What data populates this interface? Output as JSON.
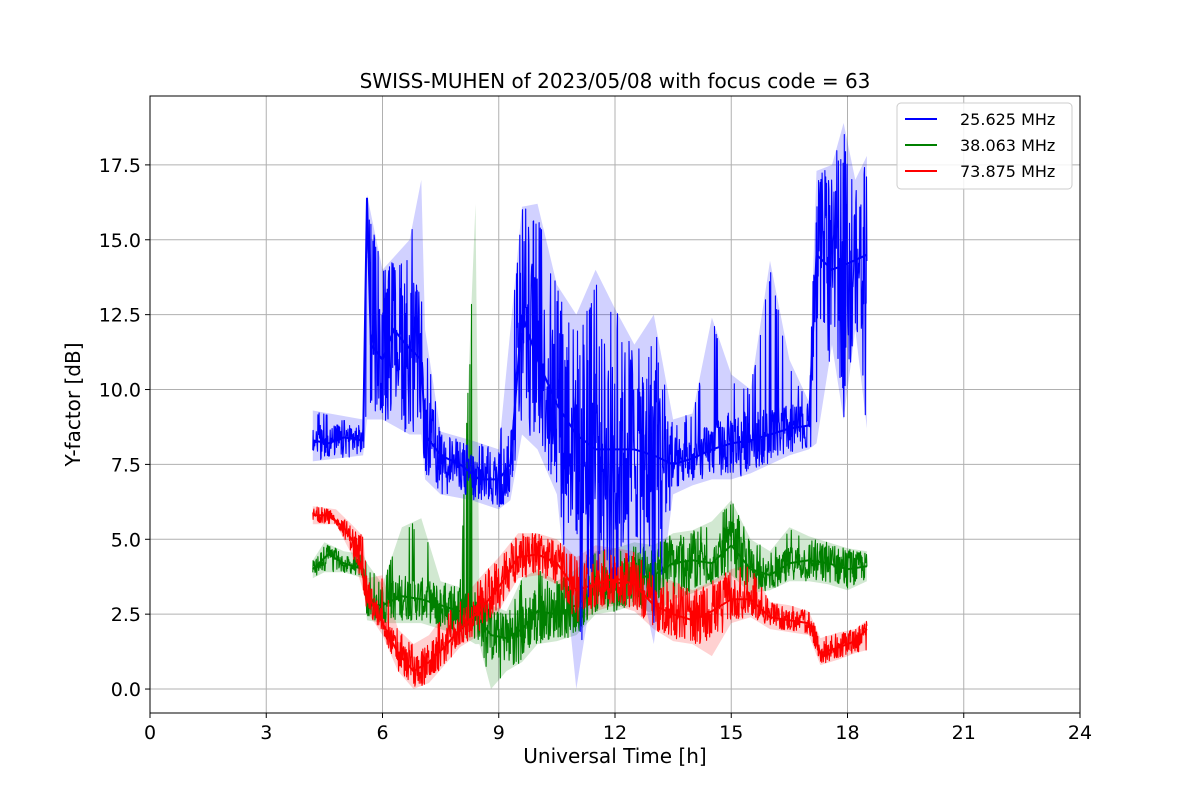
{
  "chart_data": {
    "type": "line",
    "title": "SWISS-MUHEN of 2023/05/08 with focus code = 63",
    "xlabel": "Universal Time [h]",
    "ylabel": "Y-factor [dB]",
    "xlim": [
      0,
      24
    ],
    "ylim": [
      -0.8,
      19.8
    ],
    "xticks": [
      0,
      3,
      6,
      9,
      12,
      15,
      18,
      21,
      24
    ],
    "yticks": [
      0.0,
      2.5,
      5.0,
      7.5,
      10.0,
      12.5,
      15.0,
      17.5
    ],
    "xtick_labels": [
      "0",
      "3",
      "6",
      "9",
      "12",
      "15",
      "18",
      "21",
      "24"
    ],
    "ytick_labels": [
      "0.0",
      "2.5",
      "5.0",
      "7.5",
      "10.0",
      "12.5",
      "15.0",
      "17.5"
    ],
    "grid": true,
    "legend_position": "top-right",
    "series": [
      {
        "name": "25.625 MHz",
        "color": "#0000ff",
        "points": [
          [
            4.2,
            8.3
          ],
          [
            4.6,
            8.2
          ],
          [
            5.0,
            8.4
          ],
          [
            5.5,
            8.3
          ],
          [
            5.6,
            16.4
          ],
          [
            5.7,
            11.5
          ],
          [
            6.0,
            11.0
          ],
          [
            6.3,
            12.0
          ],
          [
            6.6,
            11.5
          ],
          [
            7.0,
            11.0
          ],
          [
            7.1,
            8.5
          ],
          [
            7.5,
            7.8
          ],
          [
            8.0,
            7.5
          ],
          [
            8.5,
            7.0
          ],
          [
            9.0,
            7.0
          ],
          [
            9.3,
            7.5
          ],
          [
            9.6,
            12.5
          ],
          [
            10.0,
            11.0
          ],
          [
            10.5,
            9.5
          ],
          [
            11.0,
            8.5
          ],
          [
            11.5,
            8.0
          ],
          [
            12.0,
            8.0
          ],
          [
            12.5,
            8.0
          ],
          [
            13.0,
            7.8
          ],
          [
            13.5,
            7.5
          ],
          [
            14.0,
            7.7
          ],
          [
            14.5,
            8.0
          ],
          [
            15.0,
            8.2
          ],
          [
            15.5,
            8.3
          ],
          [
            16.0,
            8.5
          ],
          [
            16.5,
            8.7
          ],
          [
            17.0,
            8.8
          ],
          [
            17.2,
            14.5
          ],
          [
            17.6,
            14.0
          ],
          [
            18.0,
            14.2
          ],
          [
            18.5,
            14.5
          ]
        ],
        "band": [
          [
            4.2,
            7.6,
            9.3
          ],
          [
            5.5,
            7.8,
            9.0
          ],
          [
            5.6,
            9.0,
            16.5
          ],
          [
            6.0,
            9.0,
            14.0
          ],
          [
            6.7,
            8.5,
            15.0
          ],
          [
            7.0,
            8.5,
            17.0
          ],
          [
            7.1,
            7.0,
            12.0
          ],
          [
            7.5,
            6.5,
            8.6
          ],
          [
            8.3,
            6.3,
            8.3
          ],
          [
            9.0,
            6.0,
            8.0
          ],
          [
            9.3,
            6.3,
            12.0
          ],
          [
            9.6,
            8.5,
            16.1
          ],
          [
            10.0,
            8.0,
            16.2
          ],
          [
            10.5,
            6.5,
            13.5
          ],
          [
            11.0,
            0.0,
            12.5
          ],
          [
            11.5,
            4.0,
            14.0
          ],
          [
            12.0,
            3.5,
            12.7
          ],
          [
            12.5,
            4.5,
            11.5
          ],
          [
            13.0,
            1.5,
            12.5
          ],
          [
            13.5,
            6.5,
            9.0
          ],
          [
            14.0,
            6.8,
            9.2
          ],
          [
            14.5,
            7.0,
            12.4
          ],
          [
            15.0,
            7.0,
            10.5
          ],
          [
            15.5,
            7.2,
            10.0
          ],
          [
            16.0,
            7.5,
            14.3
          ],
          [
            16.5,
            7.8,
            11.0
          ],
          [
            17.0,
            8.0,
            9.6
          ],
          [
            17.2,
            8.2,
            17.3
          ],
          [
            17.6,
            11.5,
            17.5
          ],
          [
            17.9,
            9.0,
            18.9
          ],
          [
            18.2,
            12.0,
            17.0
          ],
          [
            18.5,
            8.7,
            17.8
          ]
        ]
      },
      {
        "name": "38.063 MHz",
        "color": "#008000",
        "points": [
          [
            4.2,
            4.0
          ],
          [
            4.6,
            4.5
          ],
          [
            5.0,
            4.2
          ],
          [
            5.5,
            4.0
          ],
          [
            5.6,
            2.8
          ],
          [
            6.0,
            2.8
          ],
          [
            6.5,
            3.1
          ],
          [
            7.0,
            3.0
          ],
          [
            7.5,
            2.8
          ],
          [
            8.0,
            2.6
          ],
          [
            8.4,
            2.5
          ],
          [
            8.8,
            1.8
          ],
          [
            9.2,
            1.7
          ],
          [
            9.6,
            2.0
          ],
          [
            10.0,
            2.6
          ],
          [
            10.5,
            2.5
          ],
          [
            11.0,
            2.8
          ],
          [
            11.5,
            3.3
          ],
          [
            12.0,
            3.5
          ],
          [
            12.5,
            3.7
          ],
          [
            13.0,
            3.8
          ],
          [
            13.5,
            4.2
          ],
          [
            14.0,
            4.3
          ],
          [
            14.5,
            4.2
          ],
          [
            15.0,
            4.8
          ],
          [
            15.5,
            4.0
          ],
          [
            16.0,
            3.8
          ],
          [
            16.5,
            4.2
          ],
          [
            17.0,
            4.3
          ],
          [
            17.5,
            4.2
          ],
          [
            18.0,
            4.0
          ],
          [
            18.5,
            4.1
          ]
        ],
        "band": [
          [
            4.2,
            3.7,
            4.3
          ],
          [
            4.5,
            3.9,
            4.9
          ],
          [
            5.0,
            3.9,
            4.6
          ],
          [
            5.5,
            3.7,
            4.5
          ],
          [
            5.6,
            2.3,
            4.2
          ],
          [
            6.0,
            2.2,
            3.5
          ],
          [
            6.5,
            2.2,
            5.4
          ],
          [
            7.0,
            2.2,
            5.7
          ],
          [
            7.5,
            2.0,
            3.6
          ],
          [
            8.0,
            1.8,
            3.4
          ],
          [
            8.4,
            1.5,
            16.2
          ],
          [
            8.5,
            1.5,
            3.2
          ],
          [
            8.8,
            0.0,
            2.8
          ],
          [
            9.2,
            0.6,
            2.6
          ],
          [
            9.6,
            0.9,
            3.7
          ],
          [
            10.0,
            1.5,
            4.0
          ],
          [
            10.5,
            1.6,
            3.6
          ],
          [
            11.0,
            1.8,
            4.0
          ],
          [
            11.5,
            2.5,
            4.6
          ],
          [
            12.0,
            2.6,
            4.7
          ],
          [
            12.5,
            2.8,
            4.9
          ],
          [
            13.0,
            2.5,
            4.8
          ],
          [
            13.5,
            3.0,
            5.2
          ],
          [
            14.0,
            3.2,
            5.3
          ],
          [
            14.5,
            3.5,
            5.6
          ],
          [
            15.0,
            3.8,
            6.3
          ],
          [
            15.5,
            3.2,
            5.0
          ],
          [
            16.0,
            3.3,
            4.6
          ],
          [
            16.5,
            3.6,
            5.4
          ],
          [
            17.0,
            3.6,
            5.1
          ],
          [
            17.5,
            3.5,
            4.9
          ],
          [
            18.0,
            3.3,
            4.7
          ],
          [
            18.5,
            3.6,
            4.6
          ]
        ]
      },
      {
        "name": "73.875 MHz",
        "color": "#ff0000",
        "points": [
          [
            4.2,
            5.8
          ],
          [
            4.6,
            5.8
          ],
          [
            5.0,
            5.4
          ],
          [
            5.3,
            4.8
          ],
          [
            5.6,
            3.2
          ],
          [
            6.0,
            2.2
          ],
          [
            6.4,
            1.2
          ],
          [
            6.8,
            0.6
          ],
          [
            7.2,
            0.9
          ],
          [
            7.6,
            1.4
          ],
          [
            8.0,
            2.0
          ],
          [
            8.5,
            2.6
          ],
          [
            9.0,
            3.4
          ],
          [
            9.5,
            4.4
          ],
          [
            10.0,
            4.5
          ],
          [
            10.5,
            4.2
          ],
          [
            11.0,
            3.3
          ],
          [
            11.5,
            3.5
          ],
          [
            12.0,
            3.7
          ],
          [
            12.5,
            3.5
          ],
          [
            13.0,
            2.8
          ],
          [
            13.5,
            2.5
          ],
          [
            14.0,
            2.3
          ],
          [
            14.5,
            2.6
          ],
          [
            15.0,
            3.0
          ],
          [
            15.5,
            3.0
          ],
          [
            16.0,
            2.4
          ],
          [
            16.5,
            2.3
          ],
          [
            17.0,
            2.2
          ],
          [
            17.3,
            1.2
          ],
          [
            17.8,
            1.4
          ],
          [
            18.2,
            1.6
          ],
          [
            18.5,
            2.0
          ]
        ],
        "band": [
          [
            4.2,
            5.5,
            6.1
          ],
          [
            4.8,
            5.5,
            6.0
          ],
          [
            5.2,
            4.5,
            5.5
          ],
          [
            5.5,
            3.3,
            5.1
          ],
          [
            5.6,
            2.6,
            3.7
          ],
          [
            6.0,
            1.8,
            3.8
          ],
          [
            6.4,
            0.6,
            2.0
          ],
          [
            6.8,
            0.0,
            1.5
          ],
          [
            7.2,
            0.2,
            1.8
          ],
          [
            7.6,
            0.8,
            2.5
          ],
          [
            8.0,
            1.4,
            2.9
          ],
          [
            8.5,
            1.8,
            3.7
          ],
          [
            9.0,
            2.6,
            4.4
          ],
          [
            9.5,
            3.7,
            5.2
          ],
          [
            10.0,
            3.8,
            5.2
          ],
          [
            10.5,
            3.5,
            5.0
          ],
          [
            11.0,
            2.2,
            4.4
          ],
          [
            11.5,
            2.6,
            4.8
          ],
          [
            12.0,
            2.8,
            4.7
          ],
          [
            12.5,
            2.6,
            4.6
          ],
          [
            13.0,
            2.0,
            3.8
          ],
          [
            13.5,
            1.6,
            3.6
          ],
          [
            14.0,
            1.5,
            3.3
          ],
          [
            14.5,
            1.1,
            3.6
          ],
          [
            15.0,
            2.2,
            4.0
          ],
          [
            15.5,
            2.4,
            4.2
          ],
          [
            16.0,
            2.0,
            2.9
          ],
          [
            16.5,
            1.9,
            2.8
          ],
          [
            17.0,
            1.8,
            2.6
          ],
          [
            17.3,
            0.8,
            1.7
          ],
          [
            17.8,
            1.0,
            1.9
          ],
          [
            18.2,
            1.2,
            2.0
          ],
          [
            18.5,
            1.3,
            2.3
          ]
        ]
      }
    ]
  }
}
